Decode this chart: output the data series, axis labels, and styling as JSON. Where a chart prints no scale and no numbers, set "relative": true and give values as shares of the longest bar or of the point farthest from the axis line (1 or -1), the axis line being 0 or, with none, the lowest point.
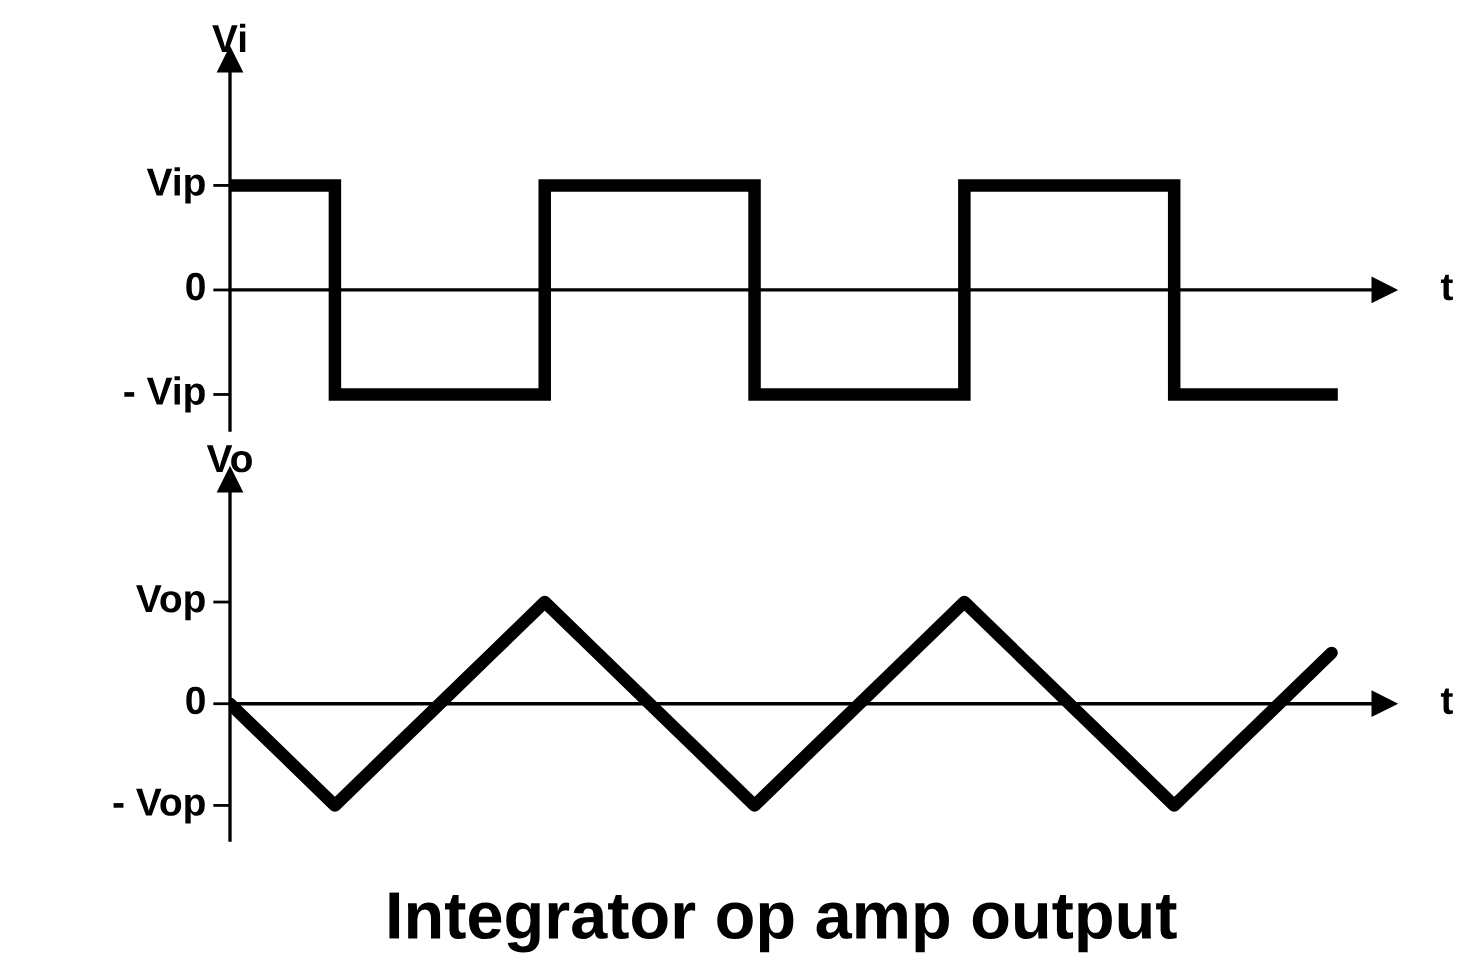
{
  "chart_data": [
    {
      "type": "step",
      "relative": true,
      "ylabel": "Vi",
      "xlabel": "t",
      "categories": [
        null,
        null,
        null,
        null,
        null,
        null,
        null,
        null,
        null,
        null,
        null,
        null,
        null,
        null,
        null,
        null,
        null,
        null,
        null,
        null,
        null,
        null
      ],
      "series": [
        {
          "color": "#000000",
          "values": [
            1,
            1,
            -1,
            -1,
            -1,
            -1,
            1,
            1,
            1,
            1,
            -1,
            -1,
            -1,
            -1,
            1,
            1,
            1,
            1,
            -1,
            -1,
            -1,
            -1
          ]
        }
      ],
      "annotations": [
        "Vip",
        "0",
        "- Vip"
      ],
      "legend": false,
      "marker": "none",
      "line_style": "solid"
    },
    {
      "type": "line",
      "relative": true,
      "ylabel": "Vo",
      "xlabel": "t",
      "categories": [
        null,
        null,
        null,
        null,
        null,
        null,
        null,
        null,
        null,
        null,
        null,
        null,
        null,
        null,
        null,
        null,
        null,
        null,
        null,
        null,
        null,
        null
      ],
      "series": [
        {
          "color": "#000000",
          "values": [
            0,
            -0.5,
            -1,
            -0.5,
            0,
            0.5,
            1,
            0.5,
            0,
            -0.5,
            -1,
            -0.5,
            0,
            0.5,
            1,
            0.5,
            0,
            -0.5,
            -1,
            -0.5,
            0,
            0.5
          ]
        }
      ],
      "annotations": [
        "Vop",
        "0",
        "- Vop",
        "Integrator op amp output"
      ],
      "legend": false,
      "marker": "none",
      "line_style": "solid"
    }
  ]
}
